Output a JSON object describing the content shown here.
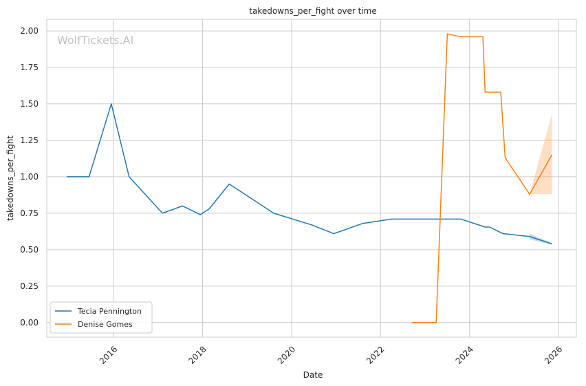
{
  "chart_data": {
    "type": "line",
    "title": "takedowns_per_fight over time",
    "xlabel": "Date",
    "ylabel": "takedowns_per_fight",
    "watermark": "WolfTickets.AI",
    "xlim": [
      2014.5,
      2026.4
    ],
    "ylim": [
      -0.1,
      2.08
    ],
    "x_ticks": [
      2016,
      2018,
      2020,
      2022,
      2024,
      2026
    ],
    "x_tick_labels": [
      "2016",
      "2018",
      "2020",
      "2022",
      "2024",
      "2026"
    ],
    "y_ticks": [
      0.0,
      0.25,
      0.5,
      0.75,
      1.0,
      1.25,
      1.5,
      1.75,
      2.0
    ],
    "y_tick_labels": [
      "0.00",
      "0.25",
      "0.50",
      "0.75",
      "1.00",
      "1.25",
      "1.50",
      "1.75",
      "2.00"
    ],
    "grid": true,
    "legend_position": "bottom-left",
    "series": [
      {
        "name": "Tecia Pennington",
        "color": "#1f77b4",
        "x": [
          2014.95,
          2015.45,
          2015.95,
          2016.35,
          2017.1,
          2017.55,
          2017.95,
          2018.15,
          2018.6,
          2019.1,
          2019.6,
          2020.45,
          2020.95,
          2021.6,
          2022.25,
          2023.0,
          2023.8,
          2024.35,
          2024.45,
          2024.75,
          2025.35,
          2025.85
        ],
        "y": [
          1.0,
          1.0,
          1.5,
          1.0,
          0.75,
          0.8,
          0.74,
          0.78,
          0.95,
          0.85,
          0.75,
          0.67,
          0.61,
          0.68,
          0.71,
          0.71,
          0.71,
          0.655,
          0.655,
          0.61,
          0.59,
          0.54
        ],
        "band": {
          "x": [
            2025.35,
            2025.85
          ],
          "lower": [
            0.57,
            0.535
          ],
          "upper": [
            0.61,
            0.545
          ]
        }
      },
      {
        "name": "Denise Gomes",
        "color": "#ff7f0e",
        "x": [
          2022.7,
          2023.0,
          2023.25,
          2023.5,
          2023.8,
          2024.0,
          2024.3,
          2024.35,
          2024.7,
          2024.8,
          2025.35,
          2025.85
        ],
        "y": [
          0.0,
          0.0,
          0.0,
          1.98,
          1.96,
          1.96,
          1.96,
          1.58,
          1.58,
          1.13,
          0.88,
          1.15
        ],
        "band": {
          "x": [
            2025.35,
            2025.85
          ],
          "lower": [
            0.88,
            0.88
          ],
          "upper": [
            0.88,
            1.43
          ]
        }
      }
    ]
  }
}
